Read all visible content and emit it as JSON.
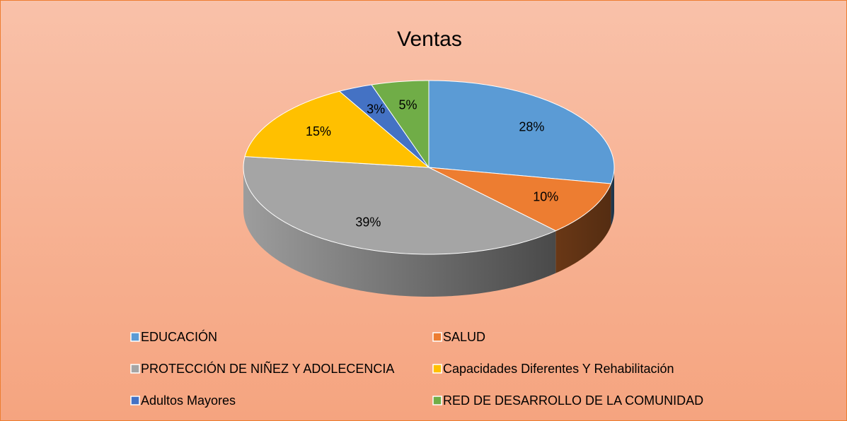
{
  "chart_data": {
    "type": "pie",
    "title": "Ventas",
    "categories": [
      "EDUCACIÓN",
      "SALUD",
      "PROTECCIÓN DE NIÑEZ Y ADOLECENCIA",
      "Capacidades Diferentes Y Rehabilitación",
      "Adultos Mayores",
      "RED DE DESARROLLO DE LA COMUNIDAD"
    ],
    "values": [
      28,
      10,
      39,
      15,
      3,
      5
    ],
    "value_labels": [
      "28%",
      "10%",
      "39%",
      "15%",
      "3%",
      "5%"
    ],
    "colors": [
      "#5b9bd5",
      "#ed7d31",
      "#a5a5a5",
      "#ffc000",
      "#4472c4",
      "#70ad47"
    ],
    "legend": "bottom"
  }
}
